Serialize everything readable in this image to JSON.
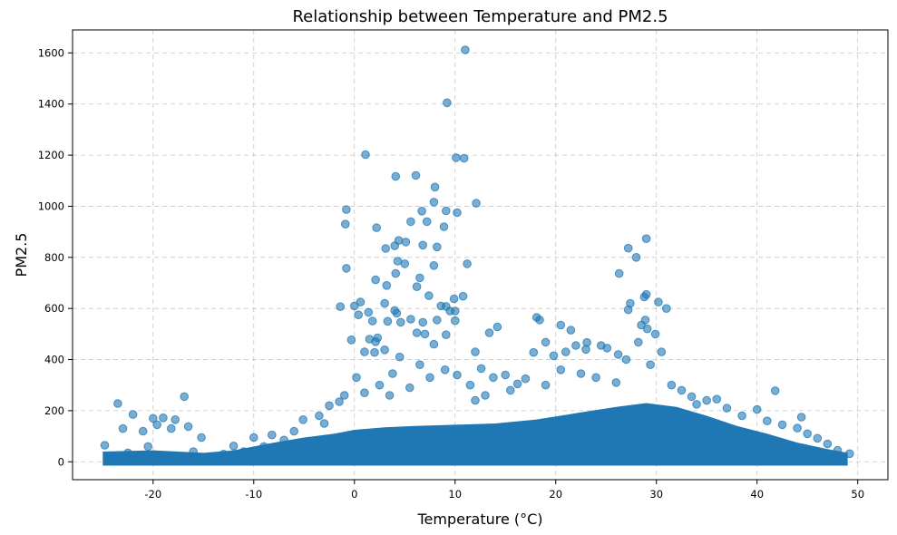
{
  "chart_data": {
    "type": "scatter",
    "title": "Relationship between Temperature and PM2.5",
    "xlabel": "Temperature (°C)",
    "ylabel": "PM2.5",
    "xlim": [
      -28,
      53
    ],
    "ylim": [
      -70,
      1690
    ],
    "xticks": [
      -20,
      -10,
      0,
      10,
      20,
      30,
      40,
      50
    ],
    "yticks": [
      0,
      200,
      400,
      600,
      800,
      1000,
      1200,
      1400,
      1600
    ],
    "grid": true,
    "color": "#1f77b4",
    "dense_band": [
      [
        -25,
        0,
        40
      ],
      [
        -20,
        0,
        45
      ],
      [
        -15,
        0,
        35
      ],
      [
        -12,
        0,
        45
      ],
      [
        -10,
        0,
        60
      ],
      [
        -8,
        0,
        75
      ],
      [
        -5,
        0,
        95
      ],
      [
        -2,
        0,
        110
      ],
      [
        0,
        0,
        125
      ],
      [
        3,
        0,
        135
      ],
      [
        6,
        0,
        140
      ],
      [
        10,
        0,
        145
      ],
      [
        14,
        0,
        150
      ],
      [
        18,
        0,
        165
      ],
      [
        22,
        0,
        190
      ],
      [
        26,
        0,
        215
      ],
      [
        29,
        0,
        230
      ],
      [
        32,
        0,
        215
      ],
      [
        35,
        0,
        180
      ],
      [
        38,
        0,
        140
      ],
      [
        41,
        0,
        110
      ],
      [
        44,
        0,
        75
      ],
      [
        47,
        0,
        50
      ],
      [
        49,
        0,
        35
      ]
    ],
    "points": [
      [
        11.0,
        1612
      ],
      [
        9.2,
        1405
      ],
      [
        1.1,
        1202
      ],
      [
        10.1,
        1190
      ],
      [
        10.9,
        1188
      ],
      [
        4.1,
        1117
      ],
      [
        6.1,
        1121
      ],
      [
        8.0,
        1075
      ],
      [
        12.1,
        1012
      ],
      [
        7.9,
        1016
      ],
      [
        -0.8,
        987
      ],
      [
        10.2,
        975
      ],
      [
        9.1,
        982
      ],
      [
        6.7,
        981
      ],
      [
        -0.9,
        930
      ],
      [
        5.6,
        940
      ],
      [
        7.2,
        940
      ],
      [
        8.9,
        920
      ],
      [
        2.2,
        916
      ],
      [
        -0.8,
        757
      ],
      [
        4.4,
        866
      ],
      [
        5.1,
        860
      ],
      [
        3.1,
        835
      ],
      [
        4.0,
        845
      ],
      [
        6.8,
        848
      ],
      [
        8.2,
        841
      ],
      [
        5.0,
        775
      ],
      [
        7.9,
        768
      ],
      [
        4.3,
        785
      ],
      [
        2.1,
        712
      ],
      [
        11.2,
        775
      ],
      [
        6.5,
        720
      ],
      [
        4.1,
        737
      ],
      [
        3.2,
        690
      ],
      [
        6.2,
        685
      ],
      [
        10.8,
        648
      ],
      [
        9.9,
        638
      ],
      [
        7.4,
        650
      ],
      [
        0.6,
        625
      ],
      [
        0.0,
        610
      ],
      [
        -1.4,
        607
      ],
      [
        3.0,
        620
      ],
      [
        9.1,
        608
      ],
      [
        8.6,
        610
      ],
      [
        9.5,
        590
      ],
      [
        4.2,
        582
      ],
      [
        4.0,
        592
      ],
      [
        0.4,
        575
      ],
      [
        1.4,
        585
      ],
      [
        10.0,
        590
      ],
      [
        14.2,
        528
      ],
      [
        13.4,
        505
      ],
      [
        8.2,
        555
      ],
      [
        5.6,
        558
      ],
      [
        10.0,
        552
      ],
      [
        3.3,
        550
      ],
      [
        6.8,
        546
      ],
      [
        1.8,
        551
      ],
      [
        4.6,
        546
      ],
      [
        6.2,
        505
      ],
      [
        7.0,
        500
      ],
      [
        9.1,
        497
      ],
      [
        12.0,
        430
      ],
      [
        -0.3,
        477
      ],
      [
        1.5,
        480
      ],
      [
        2.1,
        470
      ],
      [
        3.0,
        438
      ],
      [
        2.3,
        485
      ],
      [
        1.0,
        430
      ],
      [
        2.0,
        428
      ],
      [
        7.9,
        460
      ],
      [
        18.1,
        565
      ],
      [
        18.4,
        555
      ],
      [
        20.5,
        535
      ],
      [
        21.5,
        515
      ],
      [
        22.0,
        455
      ],
      [
        23.1,
        467
      ],
      [
        24.5,
        455
      ],
      [
        19.0,
        468
      ],
      [
        17.8,
        428
      ],
      [
        23.0,
        440
      ],
      [
        25.1,
        445
      ],
      [
        21.0,
        430
      ],
      [
        19.8,
        415
      ],
      [
        26.3,
        737
      ],
      [
        27.2,
        836
      ],
      [
        28.0,
        800
      ],
      [
        29.0,
        873
      ],
      [
        27.4,
        620
      ],
      [
        27.2,
        595
      ],
      [
        29.0,
        655
      ],
      [
        28.8,
        645
      ],
      [
        30.2,
        625
      ],
      [
        31.0,
        600
      ],
      [
        28.9,
        555
      ],
      [
        28.5,
        535
      ],
      [
        29.1,
        520
      ],
      [
        29.9,
        500
      ],
      [
        28.2,
        468
      ],
      [
        27.0,
        400
      ],
      [
        29.4,
        380
      ],
      [
        26.2,
        420
      ],
      [
        30.5,
        430
      ],
      [
        -23.5,
        228
      ],
      [
        -16.9,
        255
      ],
      [
        -22.0,
        185
      ],
      [
        -20.0,
        170
      ],
      [
        -19.0,
        172
      ],
      [
        -17.8,
        165
      ],
      [
        -16.5,
        138
      ],
      [
        -15.2,
        95
      ],
      [
        -21.0,
        120
      ],
      [
        -23.0,
        130
      ],
      [
        -19.6,
        145
      ],
      [
        -18.2,
        130
      ],
      [
        -12.0,
        62
      ],
      [
        -10.0,
        95
      ],
      [
        -8.2,
        105
      ],
      [
        -7.0,
        85
      ],
      [
        -5.1,
        165
      ],
      [
        -3.5,
        180
      ],
      [
        -2.5,
        220
      ],
      [
        -1.5,
        235
      ],
      [
        -1.0,
        260
      ],
      [
        0.2,
        330
      ],
      [
        1.0,
        270
      ],
      [
        2.5,
        300
      ],
      [
        3.8,
        345
      ],
      [
        4.5,
        410
      ],
      [
        6.5,
        380
      ],
      [
        7.5,
        330
      ],
      [
        9.0,
        360
      ],
      [
        10.2,
        340
      ],
      [
        11.5,
        300
      ],
      [
        12.6,
        365
      ],
      [
        13.8,
        330
      ],
      [
        15.0,
        340
      ],
      [
        16.2,
        305
      ],
      [
        17.0,
        325
      ],
      [
        40.0,
        205
      ],
      [
        41.0,
        160
      ],
      [
        41.8,
        278
      ],
      [
        42.5,
        145
      ],
      [
        44.0,
        132
      ],
      [
        44.4,
        175
      ],
      [
        45.0,
        110
      ],
      [
        46.0,
        92
      ],
      [
        47.0,
        70
      ],
      [
        48.0,
        45
      ],
      [
        49.2,
        32
      ],
      [
        -24.0,
        20
      ],
      [
        -22.5,
        35
      ],
      [
        -18.5,
        25
      ],
      [
        -14.0,
        15
      ],
      [
        36.0,
        245
      ],
      [
        37.0,
        210
      ],
      [
        38.5,
        180
      ],
      [
        35.0,
        240
      ],
      [
        33.5,
        255
      ],
      [
        34.0,
        225
      ],
      [
        20.5,
        360
      ],
      [
        22.5,
        345
      ],
      [
        24.0,
        330
      ],
      [
        26.0,
        310
      ],
      [
        31.5,
        300
      ],
      [
        32.5,
        280
      ],
      [
        19.0,
        300
      ],
      [
        15.5,
        280
      ],
      [
        13.0,
        260
      ],
      [
        12.0,
        240
      ],
      [
        5.5,
        290
      ],
      [
        3.5,
        260
      ],
      [
        -3.0,
        150
      ],
      [
        -6.0,
        120
      ],
      [
        -9.0,
        60
      ],
      [
        -11.0,
        40
      ],
      [
        -13.0,
        30
      ],
      [
        -16.0,
        40
      ],
      [
        -20.5,
        60
      ],
      [
        -24.8,
        65
      ]
    ]
  }
}
